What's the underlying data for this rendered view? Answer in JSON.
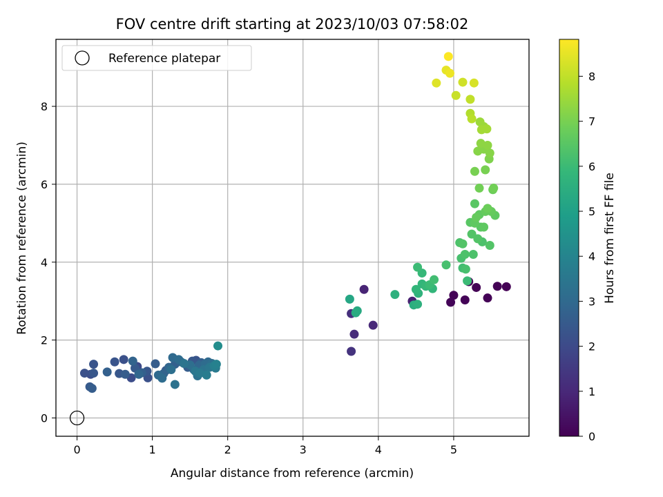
{
  "chart_data": {
    "type": "scatter",
    "title": "FOV centre drift starting at 2023/10/03 07:58:02",
    "xlabel": "Angular distance from reference (arcmin)",
    "ylabel": "Rotation from reference (arcmin)",
    "xlim": [
      -0.28,
      6.0
    ],
    "ylim": [
      -0.47,
      9.72
    ],
    "xticks": [
      0,
      1,
      2,
      3,
      4,
      5
    ],
    "yticks": [
      0,
      2,
      4,
      6,
      8
    ],
    "grid": true,
    "legend": {
      "placement": "top-left",
      "entries": [
        "Reference platepar"
      ]
    },
    "reference_point": {
      "label": "Reference platepar",
      "x": 0,
      "y": 0,
      "marker": "open-circle"
    },
    "colorbar": {
      "label": "Hours from first FF file",
      "range": [
        0,
        8.82
      ],
      "ticks": [
        0,
        1,
        2,
        3,
        4,
        5,
        6,
        7,
        8
      ],
      "colormap": "viridis",
      "colors": [
        "#440154",
        "#482878",
        "#3e4989",
        "#31688e",
        "#26828e",
        "#1f9e89",
        "#35b779",
        "#6ece58",
        "#b5de2b",
        "#fde725"
      ]
    },
    "series": [
      {
        "points": [
          {
            "x": 5.0,
            "y": 3.15,
            "c": 0.05
          },
          {
            "x": 5.15,
            "y": 3.03,
            "c": 0.08
          },
          {
            "x": 4.96,
            "y": 2.97,
            "c": 0.1
          },
          {
            "x": 5.3,
            "y": 3.35,
            "c": 0.03
          },
          {
            "x": 5.45,
            "y": 3.08,
            "c": 0.06
          },
          {
            "x": 5.58,
            "y": 3.38,
            "c": 0.04
          },
          {
            "x": 5.7,
            "y": 3.37,
            "c": 0.02
          },
          {
            "x": 5.2,
            "y": 3.5,
            "c": 0.12
          },
          {
            "x": 3.81,
            "y": 3.3,
            "c": 0.9
          },
          {
            "x": 3.93,
            "y": 2.38,
            "c": 1.0
          },
          {
            "x": 3.68,
            "y": 2.15,
            "c": 1.1
          },
          {
            "x": 3.64,
            "y": 2.68,
            "c": 1.2
          },
          {
            "x": 3.64,
            "y": 1.71,
            "c": 1.3
          },
          {
            "x": 4.45,
            "y": 3.0,
            "c": 0.8
          },
          {
            "x": 0.1,
            "y": 1.15,
            "c": 2.2
          },
          {
            "x": 0.18,
            "y": 1.12,
            "c": 2.1
          },
          {
            "x": 0.22,
            "y": 1.38,
            "c": 2.3
          },
          {
            "x": 0.22,
            "y": 1.15,
            "c": 2.4
          },
          {
            "x": 0.17,
            "y": 0.8,
            "c": 2.5
          },
          {
            "x": 0.2,
            "y": 0.76,
            "c": 2.6
          },
          {
            "x": 0.4,
            "y": 1.18,
            "c": 2.7
          },
          {
            "x": 0.5,
            "y": 1.44,
            "c": 2.3
          },
          {
            "x": 0.56,
            "y": 1.14,
            "c": 2.4
          },
          {
            "x": 0.62,
            "y": 1.5,
            "c": 2.2
          },
          {
            "x": 0.64,
            "y": 1.12,
            "c": 2.6
          },
          {
            "x": 0.72,
            "y": 1.03,
            "c": 2.1
          },
          {
            "x": 0.74,
            "y": 1.46,
            "c": 2.8
          },
          {
            "x": 0.77,
            "y": 1.28,
            "c": 2.5
          },
          {
            "x": 0.8,
            "y": 1.32,
            "c": 2.0
          },
          {
            "x": 0.82,
            "y": 1.12,
            "c": 2.9
          },
          {
            "x": 0.86,
            "y": 1.16,
            "c": 2.7
          },
          {
            "x": 0.93,
            "y": 1.2,
            "c": 2.4
          },
          {
            "x": 0.94,
            "y": 1.03,
            "c": 2.2
          },
          {
            "x": 1.04,
            "y": 1.39,
            "c": 2.6
          },
          {
            "x": 1.08,
            "y": 1.1,
            "c": 3.0
          },
          {
            "x": 1.13,
            "y": 1.02,
            "c": 3.1
          },
          {
            "x": 1.15,
            "y": 1.14,
            "c": 2.8
          },
          {
            "x": 1.18,
            "y": 1.22,
            "c": 2.5
          },
          {
            "x": 1.22,
            "y": 1.3,
            "c": 2.9
          },
          {
            "x": 1.25,
            "y": 1.24,
            "c": 3.2
          },
          {
            "x": 1.27,
            "y": 1.55,
            "c": 3.0
          },
          {
            "x": 1.3,
            "y": 1.38,
            "c": 2.7
          },
          {
            "x": 1.3,
            "y": 0.86,
            "c": 3.3
          },
          {
            "x": 1.35,
            "y": 1.5,
            "c": 3.1
          },
          {
            "x": 1.38,
            "y": 1.44,
            "c": 2.8
          },
          {
            "x": 1.42,
            "y": 1.4,
            "c": 3.4
          },
          {
            "x": 1.47,
            "y": 1.3,
            "c": 2.6
          },
          {
            "x": 1.5,
            "y": 1.36,
            "c": 3.2
          },
          {
            "x": 1.53,
            "y": 1.46,
            "c": 2.4
          },
          {
            "x": 1.55,
            "y": 1.24,
            "c": 3.0
          },
          {
            "x": 1.57,
            "y": 1.2,
            "c": 3.5
          },
          {
            "x": 1.58,
            "y": 1.48,
            "c": 2.3
          },
          {
            "x": 1.6,
            "y": 1.08,
            "c": 3.3
          },
          {
            "x": 1.62,
            "y": 1.35,
            "c": 2.9
          },
          {
            "x": 1.63,
            "y": 1.15,
            "c": 3.6
          },
          {
            "x": 1.65,
            "y": 1.42,
            "c": 2.7
          },
          {
            "x": 1.68,
            "y": 1.24,
            "c": 3.4
          },
          {
            "x": 1.7,
            "y": 1.38,
            "c": 3.1
          },
          {
            "x": 1.72,
            "y": 1.1,
            "c": 3.7
          },
          {
            "x": 1.74,
            "y": 1.44,
            "c": 3.0
          },
          {
            "x": 1.76,
            "y": 1.3,
            "c": 3.5
          },
          {
            "x": 1.79,
            "y": 1.4,
            "c": 3.2
          },
          {
            "x": 1.82,
            "y": 1.34,
            "c": 3.8
          },
          {
            "x": 1.84,
            "y": 1.28,
            "c": 3.6
          },
          {
            "x": 1.85,
            "y": 1.38,
            "c": 3.9
          },
          {
            "x": 1.87,
            "y": 1.85,
            "c": 4.3
          },
          {
            "x": 3.62,
            "y": 3.05,
            "c": 5.2
          },
          {
            "x": 3.7,
            "y": 2.7,
            "c": 5.4
          },
          {
            "x": 3.72,
            "y": 2.75,
            "c": 5.3
          },
          {
            "x": 4.22,
            "y": 3.17,
            "c": 5.6
          },
          {
            "x": 4.47,
            "y": 2.9,
            "c": 5.5
          },
          {
            "x": 4.5,
            "y": 3.3,
            "c": 5.8
          },
          {
            "x": 4.52,
            "y": 2.92,
            "c": 5.6
          },
          {
            "x": 4.53,
            "y": 3.2,
            "c": 5.7
          },
          {
            "x": 4.52,
            "y": 3.87,
            "c": 6.0
          },
          {
            "x": 4.58,
            "y": 3.72,
            "c": 5.9
          },
          {
            "x": 4.58,
            "y": 3.44,
            "c": 5.8
          },
          {
            "x": 4.63,
            "y": 3.38,
            "c": 5.9
          },
          {
            "x": 4.68,
            "y": 3.42,
            "c": 6.0
          },
          {
            "x": 4.72,
            "y": 3.32,
            "c": 5.8
          },
          {
            "x": 4.74,
            "y": 3.55,
            "c": 6.1
          },
          {
            "x": 4.9,
            "y": 3.93,
            "c": 6.2
          },
          {
            "x": 5.08,
            "y": 4.5,
            "c": 6.3
          },
          {
            "x": 5.1,
            "y": 4.1,
            "c": 6.2
          },
          {
            "x": 5.12,
            "y": 4.47,
            "c": 6.4
          },
          {
            "x": 5.12,
            "y": 3.85,
            "c": 6.1
          },
          {
            "x": 5.16,
            "y": 3.82,
            "c": 6.2
          },
          {
            "x": 5.18,
            "y": 3.52,
            "c": 6.0
          },
          {
            "x": 5.15,
            "y": 4.2,
            "c": 6.3
          },
          {
            "x": 5.22,
            "y": 5.02,
            "c": 6.5
          },
          {
            "x": 5.24,
            "y": 4.72,
            "c": 6.4
          },
          {
            "x": 5.26,
            "y": 4.2,
            "c": 6.3
          },
          {
            "x": 5.28,
            "y": 5.0,
            "c": 6.6
          },
          {
            "x": 5.28,
            "y": 5.5,
            "c": 6.5
          },
          {
            "x": 5.3,
            "y": 5.15,
            "c": 6.7
          },
          {
            "x": 5.32,
            "y": 4.6,
            "c": 6.4
          },
          {
            "x": 5.34,
            "y": 5.22,
            "c": 6.6
          },
          {
            "x": 5.36,
            "y": 4.9,
            "c": 6.5
          },
          {
            "x": 5.38,
            "y": 4.52,
            "c": 6.3
          },
          {
            "x": 5.4,
            "y": 4.9,
            "c": 6.6
          },
          {
            "x": 5.42,
            "y": 5.3,
            "c": 6.7
          },
          {
            "x": 5.45,
            "y": 5.38,
            "c": 6.8
          },
          {
            "x": 5.48,
            "y": 4.43,
            "c": 6.4
          },
          {
            "x": 5.5,
            "y": 5.3,
            "c": 6.7
          },
          {
            "x": 5.55,
            "y": 5.2,
            "c": 6.6
          },
          {
            "x": 5.34,
            "y": 5.9,
            "c": 6.9
          },
          {
            "x": 5.52,
            "y": 5.86,
            "c": 6.8
          },
          {
            "x": 5.53,
            "y": 5.9,
            "c": 6.9
          },
          {
            "x": 5.28,
            "y": 6.33,
            "c": 7.0
          },
          {
            "x": 5.42,
            "y": 6.37,
            "c": 7.0
          },
          {
            "x": 5.47,
            "y": 6.65,
            "c": 7.1
          },
          {
            "x": 5.32,
            "y": 6.85,
            "c": 7.2
          },
          {
            "x": 5.36,
            "y": 7.05,
            "c": 7.3
          },
          {
            "x": 5.4,
            "y": 6.9,
            "c": 7.2
          },
          {
            "x": 5.45,
            "y": 7.0,
            "c": 7.3
          },
          {
            "x": 5.48,
            "y": 6.8,
            "c": 7.2
          },
          {
            "x": 5.35,
            "y": 7.6,
            "c": 7.5
          },
          {
            "x": 5.37,
            "y": 7.4,
            "c": 7.6
          },
          {
            "x": 5.4,
            "y": 7.48,
            "c": 7.5
          },
          {
            "x": 5.44,
            "y": 7.42,
            "c": 7.6
          },
          {
            "x": 5.22,
            "y": 7.82,
            "c": 7.8
          },
          {
            "x": 5.24,
            "y": 7.68,
            "c": 7.9
          },
          {
            "x": 5.22,
            "y": 8.18,
            "c": 8.0
          },
          {
            "x": 5.03,
            "y": 8.28,
            "c": 8.1
          },
          {
            "x": 4.77,
            "y": 8.6,
            "c": 8.4
          },
          {
            "x": 5.12,
            "y": 8.62,
            "c": 8.2
          },
          {
            "x": 5.27,
            "y": 8.6,
            "c": 8.3
          },
          {
            "x": 4.9,
            "y": 8.93,
            "c": 8.5
          },
          {
            "x": 4.95,
            "y": 8.85,
            "c": 8.6
          },
          {
            "x": 4.93,
            "y": 9.28,
            "c": 8.8
          }
        ]
      }
    ]
  }
}
